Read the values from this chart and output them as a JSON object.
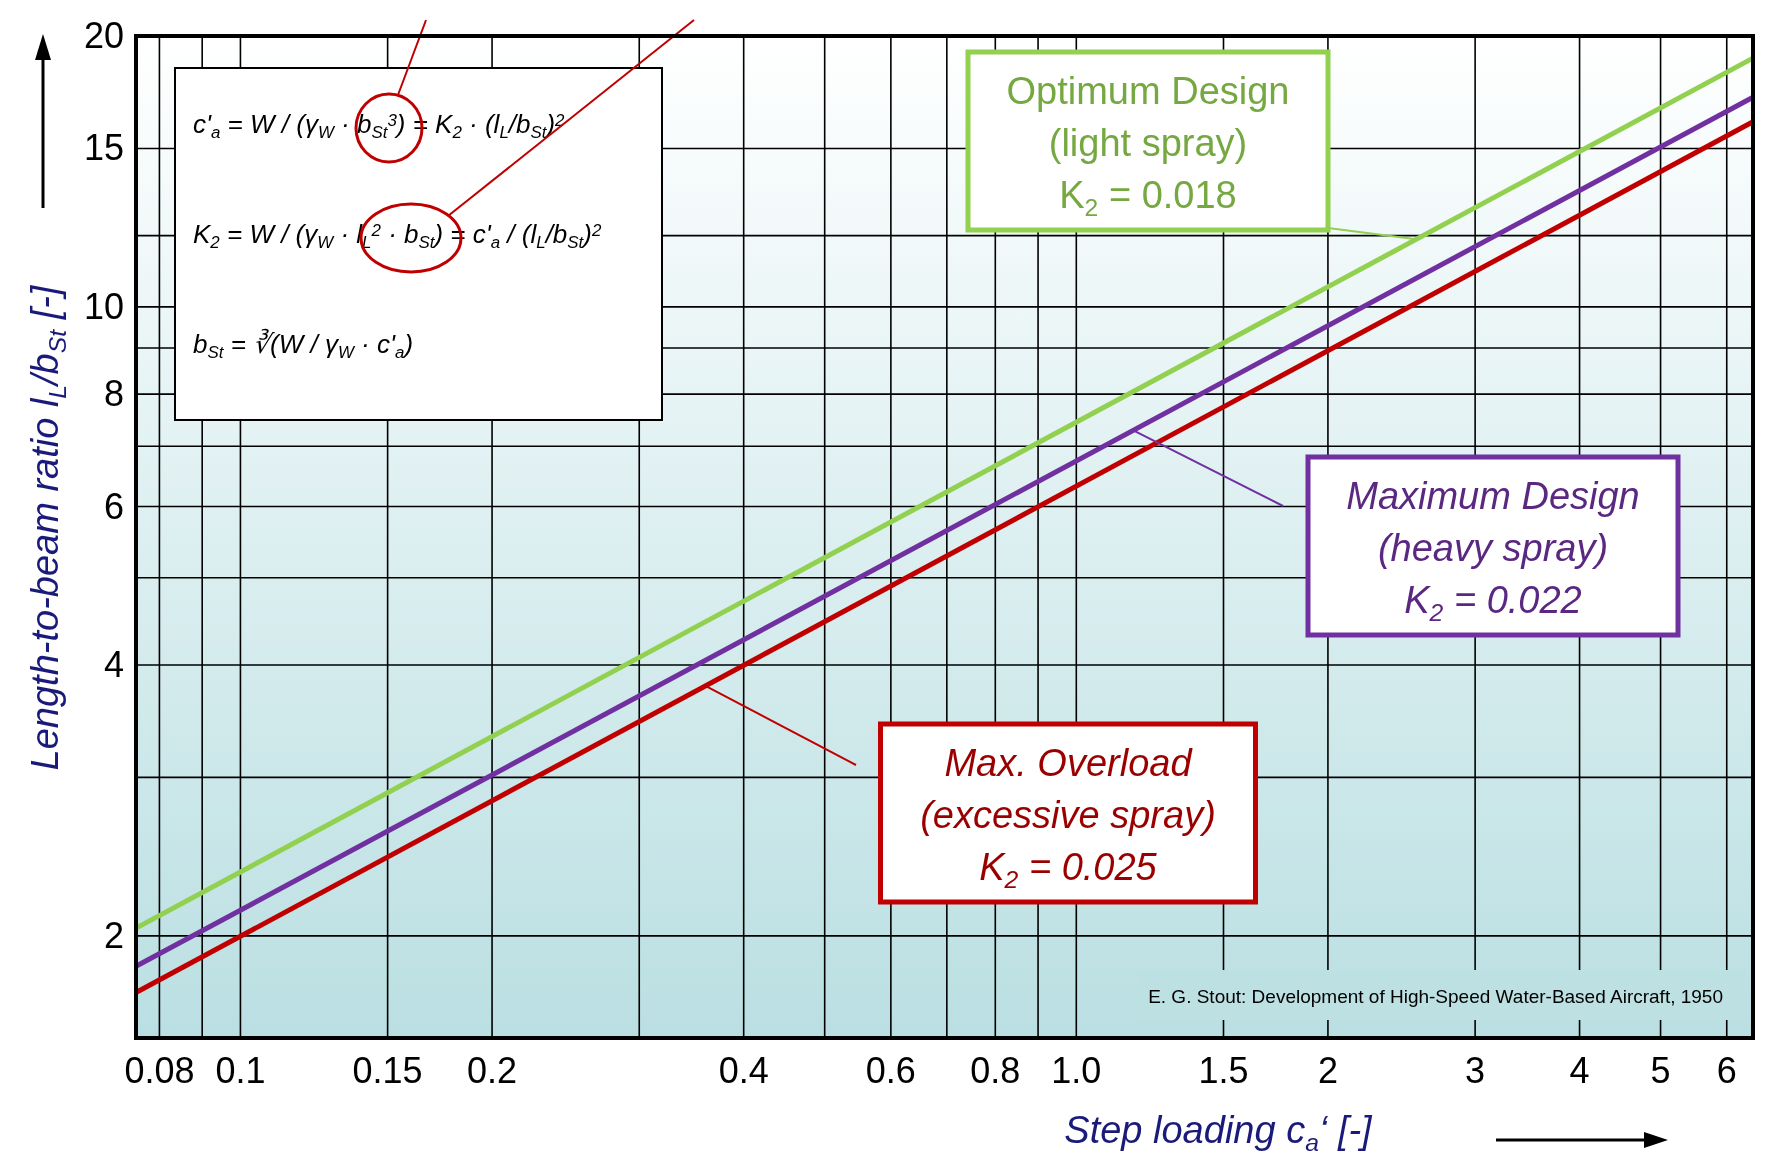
{
  "chart_data": {
    "type": "line",
    "xlabel": "Step loading c$_{a}$‘ [-]",
    "ylabel": "Length-to-beam ratio l$_{L}$/b$_{St}$ [-]",
    "log": "xy",
    "grid": true,
    "legend": false,
    "marker": "none",
    "line_style": "solid",
    "x": [
      0.075,
      6.45
    ],
    "xlim": [
      0.075,
      6.45
    ],
    "xticks": [
      0.08,
      {
        "value": 0.09,
        "label": null
      },
      0.1,
      0.15,
      0.2,
      {
        "value": 0.3,
        "label": null
      },
      0.4,
      {
        "value": 0.5,
        "label": null
      },
      0.6,
      {
        "value": 0.7,
        "label": null
      },
      0.8,
      {
        "value": 0.9,
        "label": null
      },
      {
        "value": 1,
        "label": "1.0"
      },
      1.5,
      2,
      3,
      4,
      5,
      6
    ],
    "ylim": [
      1.54,
      20
    ],
    "yticks": [
      2,
      {
        "value": 3,
        "label": null
      },
      4,
      {
        "value": 5,
        "label": null
      },
      6,
      {
        "value": 7,
        "label": null
      },
      8,
      {
        "value": 9,
        "label": null
      },
      10,
      {
        "value": 12,
        "label": null
      },
      15,
      20
    ],
    "series": [
      {
        "name": "Optimum Design\n(light spray)\nK$_{2}$ = 0.018",
        "color": "#92d050",
        "values": [
          2.04,
          18.9
        ]
      },
      {
        "name": "Maximum Design\n(heavy spray)\nK$_{2}$ = 0.022",
        "color": "#7030a0",
        "values": [
          1.85,
          17.1
        ]
      },
      {
        "name": "Max. Overload\n(excessive spray)\nK$_{2}$ = 0.025",
        "color": "#c00000",
        "values": [
          1.73,
          16.06
        ]
      }
    ],
    "annotations": [
      "c'$_{a}$ = W / (γ$_{W}$ · b$_{St}$$^{3}$) = K$_{2}$ · (l$_{L}$/b$_{St}$)$^{2}$",
      "K$_{2}$ = W / (γ$_{W}$ · l$_{L}$$^{2}$ · b$_{St}$) = c'$_{a}$ / (l$_{L}$/b$_{St}$)$^{2}$",
      "b$_{St}$ = ∛(W / γ$_{W}$ · c'$_{a}$)",
      "E. G. Stout: Development of High-Speed Water-Based Aircraft, 1950"
    ]
  }
}
